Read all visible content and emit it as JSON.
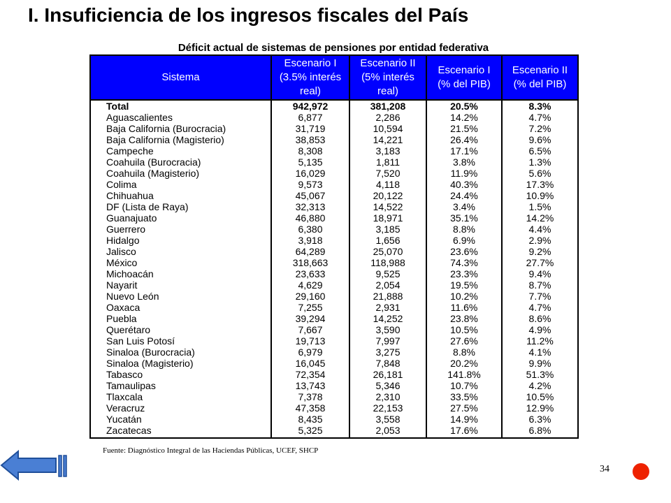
{
  "slide": {
    "title": "I. Insuficiencia de los ingresos fiscales del País",
    "page_number": "34"
  },
  "table": {
    "caption": "Déficit actual de sistemas de pensiones por entidad federativa",
    "headers": {
      "sistema": "Sistema",
      "esc1_real_l1": "Escenario I",
      "esc1_real_l2": "(3.5% interés",
      "esc1_real_l3": "real)",
      "esc2_real_l1": "Escenario II",
      "esc2_real_l2": "(5% interés",
      "esc2_real_l3": "real)",
      "esc1_pib_l1": "Escenario I",
      "esc1_pib_l2": "(% del PIB)",
      "esc2_pib_l1": "Escenario II",
      "esc2_pib_l2": "(% del PIB)"
    },
    "rows": [
      [
        "Total",
        "942,972",
        "381,208",
        "20.5%",
        "8.3%"
      ],
      [
        "Aguascalientes",
        "6,877",
        "2,286",
        "14.2%",
        "4.7%"
      ],
      [
        "Baja California (Burocracia)",
        "31,719",
        "10,594",
        "21.5%",
        "7.2%"
      ],
      [
        "Baja California (Magisterio)",
        "38,853",
        "14,221",
        "26.4%",
        "9.6%"
      ],
      [
        "Campeche",
        "8,308",
        "3,183",
        "17.1%",
        "6.5%"
      ],
      [
        "Coahuila (Burocracia)",
        "5,135",
        "1,811",
        "3.8%",
        "1.3%"
      ],
      [
        "Coahuila (Magisterio)",
        "16,029",
        "7,520",
        "11.9%",
        "5.6%"
      ],
      [
        "Colima",
        "9,573",
        "4,118",
        "40.3%",
        "17.3%"
      ],
      [
        "Chihuahua",
        "45,067",
        "20,122",
        "24.4%",
        "10.9%"
      ],
      [
        "DF (Lista de Raya)",
        "32,313",
        "14,522",
        "3.4%",
        "1.5%"
      ],
      [
        "Guanajuato",
        "46,880",
        "18,971",
        "35.1%",
        "14.2%"
      ],
      [
        "Guerrero",
        "6,380",
        "3,185",
        "8.8%",
        "4.4%"
      ],
      [
        "Hidalgo",
        "3,918",
        "1,656",
        "6.9%",
        "2.9%"
      ],
      [
        "Jalisco",
        "64,289",
        "25,070",
        "23.6%",
        "9.2%"
      ],
      [
        "México",
        "318,663",
        "118,988",
        "74.3%",
        "27.7%"
      ],
      [
        "Michoacán",
        "23,633",
        "9,525",
        "23.3%",
        "9.4%"
      ],
      [
        "Nayarit",
        "4,629",
        "2,054",
        "19.5%",
        "8.7%"
      ],
      [
        "Nuevo León",
        "29,160",
        "21,888",
        "10.2%",
        "7.7%"
      ],
      [
        "Oaxaca",
        "7,255",
        "2,931",
        "11.6%",
        "4.7%"
      ],
      [
        "Puebla",
        "39,294",
        "14,252",
        "23.8%",
        "8.6%"
      ],
      [
        "Querétaro",
        "7,667",
        "3,590",
        "10.5%",
        "4.9%"
      ],
      [
        "San Luis Potosí",
        "19,713",
        "7,997",
        "27.6%",
        "11.2%"
      ],
      [
        "Sinaloa (Burocracia)",
        "6,979",
        "3,275",
        "8.8%",
        "4.1%"
      ],
      [
        "Sinaloa (Magisterio)",
        "16,045",
        "7,848",
        "20.2%",
        "9.9%"
      ],
      [
        "Tabasco",
        "72,354",
        "26,181",
        "141.8%",
        "51.3%"
      ],
      [
        "Tamaulipas",
        "13,743",
        "5,346",
        "10.7%",
        "4.2%"
      ],
      [
        "Tlaxcala",
        "7,378",
        "2,310",
        "33.5%",
        "10.5%"
      ],
      [
        "Veracruz",
        "47,358",
        "22,153",
        "27.5%",
        "12.9%"
      ],
      [
        "Yucatán",
        "8,435",
        "3,558",
        "14.9%",
        "6.3%"
      ],
      [
        "Zacatecas",
        "5,325",
        "2,053",
        "17.6%",
        "6.8%"
      ]
    ],
    "source": "Fuente: Diagnóstico Integral de las Haciendas Públicas, UCEF, SHCP"
  },
  "colors": {
    "header_bg": "#0000ff",
    "header_text": "#ffffff",
    "nav_arrow": "#4a7fd4",
    "end_button": "#ee2200"
  },
  "icons": {
    "back": "back-arrow-icon",
    "end": "end-show-button"
  }
}
